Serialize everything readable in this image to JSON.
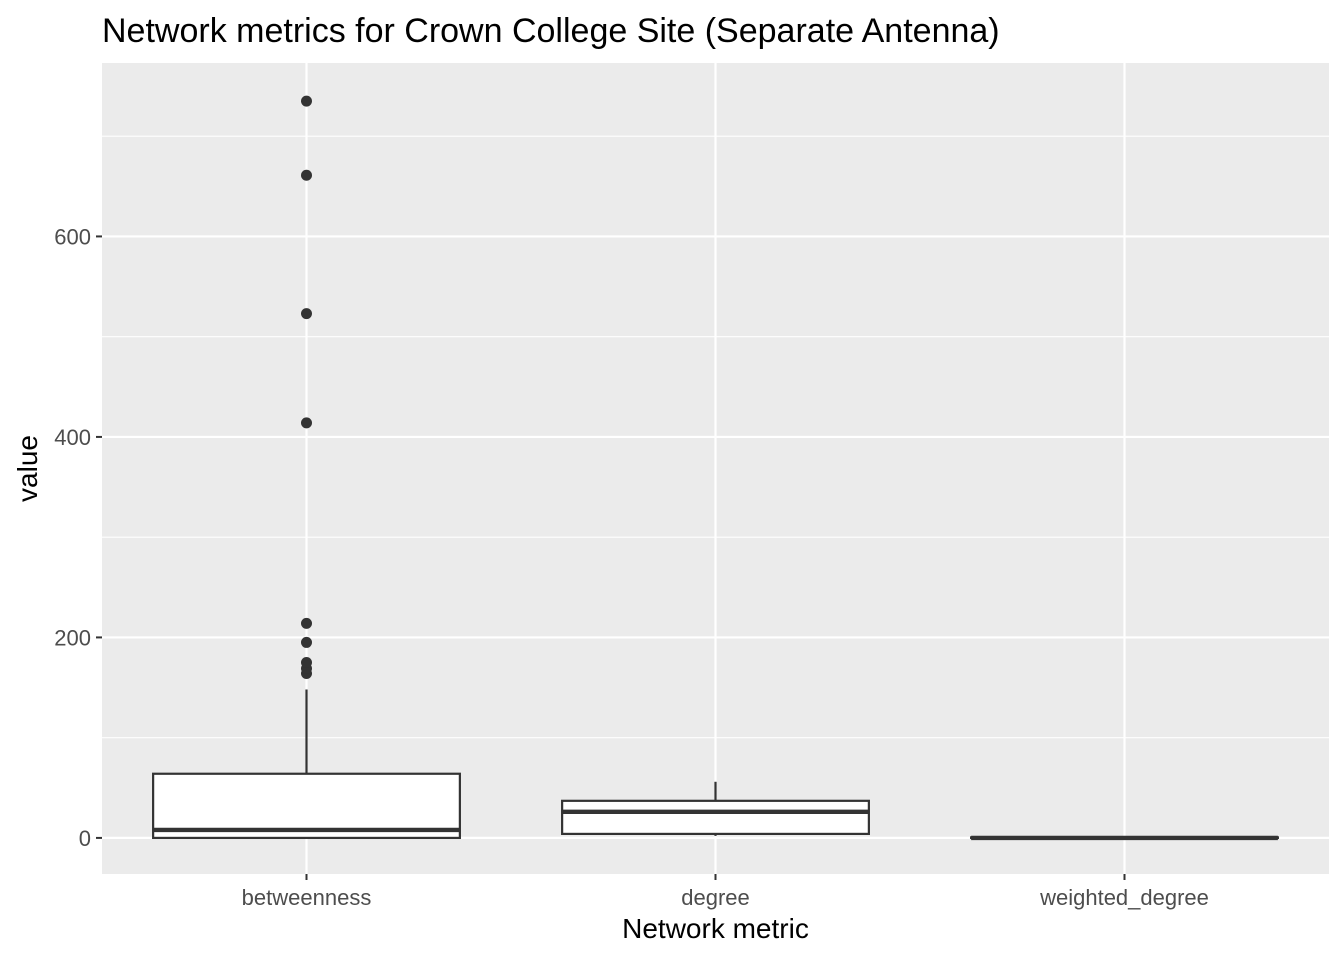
{
  "chart_data": {
    "type": "box",
    "title": "Network metrics for Crown College Site (Separate Antenna)",
    "xlabel": "Network metric",
    "ylabel": "value",
    "categories": [
      "betweenness",
      "degree",
      "weighted_degree"
    ],
    "ylim": [
      -36,
      773
    ],
    "y_ticks": [
      0,
      200,
      400,
      600
    ],
    "y_minor_ticks": [
      100,
      300,
      500,
      700
    ],
    "grid": true,
    "legend": "none",
    "colors": {
      "panel": "#ebebeb",
      "grid": "#ffffff",
      "box_fill": "#ffffff",
      "box_stroke": "#333333",
      "outlier": "#333333",
      "tick_label": "#4d4d4d"
    },
    "boxes": [
      {
        "category": "betweenness",
        "min": 0,
        "q1": 0,
        "median": 8,
        "q3": 64,
        "max": 148,
        "outliers": [
          164,
          169,
          175,
          195,
          214,
          414,
          523,
          661,
          735
        ]
      },
      {
        "category": "degree",
        "min": 2,
        "q1": 4,
        "median": 26,
        "q3": 37,
        "max": 56,
        "outliers": []
      },
      {
        "category": "weighted_degree",
        "min": 0,
        "q1": 0,
        "median": 0,
        "q3": 0.5,
        "max": 1,
        "outliers": []
      }
    ]
  }
}
